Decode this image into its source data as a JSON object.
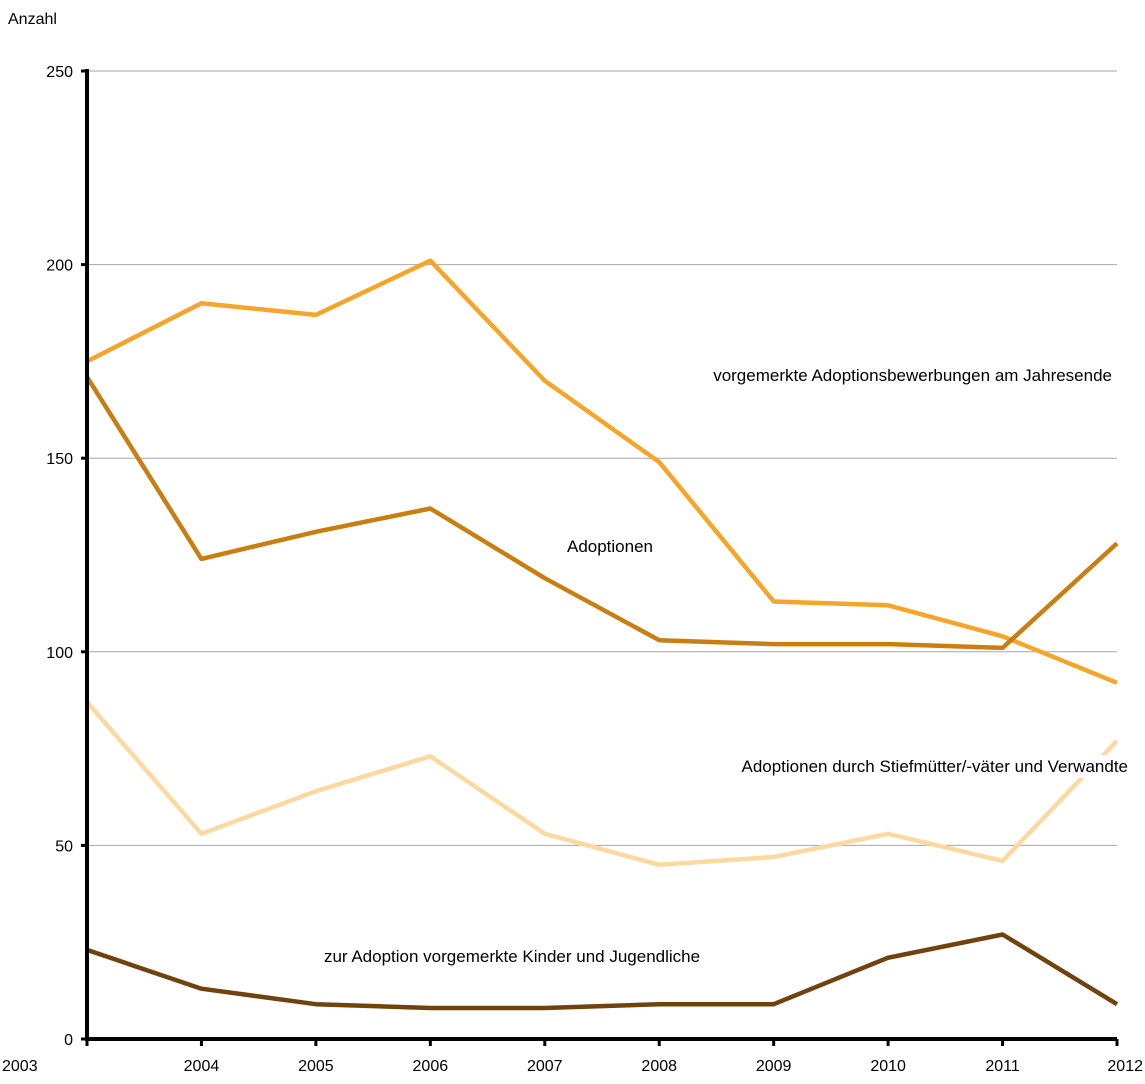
{
  "chart_data": {
    "type": "line",
    "ylabel": "Anzahl",
    "xlabel": "",
    "ylim": [
      0,
      250
    ],
    "yticks": [
      0,
      50,
      100,
      150,
      200,
      250
    ],
    "x": [
      "2003",
      "2004",
      "2005",
      "2006",
      "2007",
      "2008",
      "2009",
      "2010",
      "2011",
      "2012"
    ],
    "grid": "horizontal",
    "series": [
      {
        "name": "vorgemerkte Adoptionsbewerbungen am Jahresende",
        "color": "#f5a52a",
        "values": [
          175,
          190,
          187,
          201,
          170,
          149,
          113,
          112,
          104,
          92
        ]
      },
      {
        "name": "Adoptionen",
        "color": "#c97e12",
        "values": [
          171,
          124,
          131,
          137,
          119,
          103,
          102,
          102,
          101,
          128
        ]
      },
      {
        "name": "Adoptionen durch Stiefmütter/-väter und Verwandte",
        "color": "#fcd9a0",
        "values": [
          87,
          53,
          64,
          73,
          53,
          45,
          47,
          53,
          46,
          77
        ]
      },
      {
        "name": "zur Adoption vorgemerkte Kinder und Jugendliche",
        "color": "#6e430d",
        "values": [
          23,
          13,
          9,
          8,
          8,
          9,
          9,
          21,
          27,
          9
        ]
      }
    ]
  }
}
